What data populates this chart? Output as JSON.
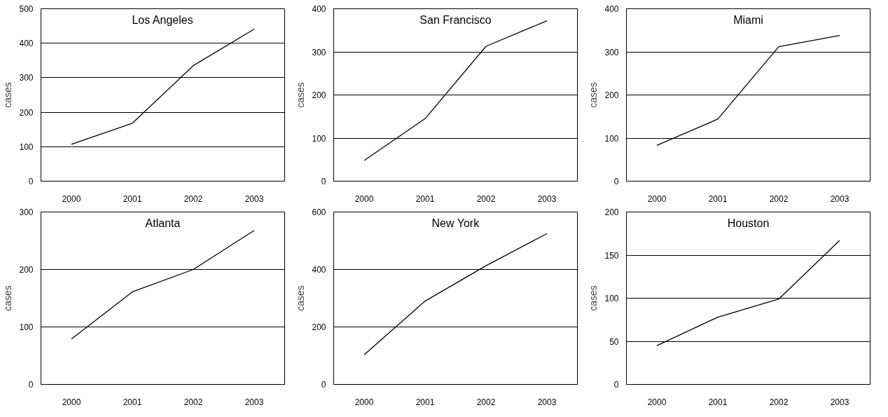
{
  "chart_data": [
    {
      "type": "line",
      "title": "Los Angeles",
      "ylabel": "cases",
      "categories": [
        "2000",
        "2001",
        "2002",
        "2003"
      ],
      "values": [
        107,
        168,
        335,
        441
      ],
      "color": "#000000",
      "ylim": [
        0,
        500
      ],
      "yticks": [
        0,
        100,
        200,
        300,
        400,
        500
      ],
      "grid": "y"
    },
    {
      "type": "line",
      "title": "San Francisco",
      "ylabel": "cases",
      "categories": [
        "2000",
        "2001",
        "2002",
        "2003"
      ],
      "values": [
        48,
        145,
        313,
        372
      ],
      "color": "#000000",
      "ylim": [
        0,
        400
      ],
      "yticks": [
        0,
        100,
        200,
        300,
        400
      ],
      "grid": "y"
    },
    {
      "type": "line",
      "title": "Miami",
      "ylabel": "cases",
      "categories": [
        "2000",
        "2001",
        "2002",
        "2003"
      ],
      "values": [
        83,
        144,
        312,
        338
      ],
      "color": "#000000",
      "ylim": [
        0,
        400
      ],
      "yticks": [
        0,
        100,
        200,
        300,
        400
      ],
      "grid": "y"
    },
    {
      "type": "line",
      "title": "Atlanta",
      "ylabel": "cases",
      "categories": [
        "2000",
        "2001",
        "2002",
        "2003"
      ],
      "values": [
        79,
        161,
        200,
        268
      ],
      "color": "#000000",
      "ylim": [
        0,
        300
      ],
      "yticks": [
        0,
        100,
        200,
        300
      ],
      "grid": "y"
    },
    {
      "type": "line",
      "title": "New York",
      "ylabel": "cases",
      "categories": [
        "2000",
        "2001",
        "2002",
        "2003"
      ],
      "values": [
        103,
        290,
        413,
        525
      ],
      "color": "#000000",
      "ylim": [
        0,
        600
      ],
      "yticks": [
        0,
        200,
        400,
        600
      ],
      "grid": "y"
    },
    {
      "type": "line",
      "title": "Houston",
      "ylabel": "cases",
      "categories": [
        "2000",
        "2001",
        "2002",
        "2003"
      ],
      "values": [
        45,
        78,
        99,
        167
      ],
      "color": "#000000",
      "ylim": [
        0,
        200
      ],
      "yticks": [
        0,
        50,
        100,
        150,
        200
      ],
      "grid": "y"
    }
  ]
}
